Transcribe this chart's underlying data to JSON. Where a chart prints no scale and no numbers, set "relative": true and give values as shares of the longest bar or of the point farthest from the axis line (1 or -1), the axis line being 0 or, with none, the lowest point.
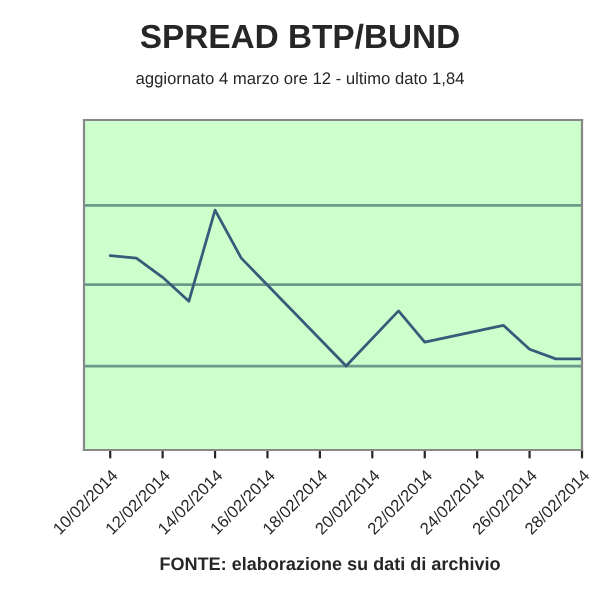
{
  "chart_data": {
    "type": "line",
    "title": "SPREAD BTP/BUND",
    "subtitle": "aggiornato 4 marzo ore 12 - ultimo dato 1,84",
    "relative": true,
    "x": [
      "2014-02-10",
      "2014-02-11",
      "2014-02-12",
      "2014-02-13",
      "2014-02-14",
      "2014-02-15",
      "2014-02-19",
      "2014-02-21",
      "2014-02-22",
      "2014-02-25",
      "2014-02-26",
      "2014-02-27",
      "2014-02-28"
    ],
    "series": [
      {
        "color": "#3a5a7a",
        "values": [
          0.81,
          0.8,
          0.72,
          0.62,
          1.0,
          0.8,
          0.35,
          0.58,
          0.45,
          0.52,
          0.42,
          0.38,
          0.38
        ]
      }
    ],
    "xlim": [
      "2014-02-09",
      "2014-02-28"
    ],
    "xticks": [
      {
        "value": "2014-02-10",
        "label": "10/02/2014"
      },
      {
        "value": "2014-02-12",
        "label": "12/02/2014"
      },
      {
        "value": "2014-02-14",
        "label": "14/02/2014"
      },
      {
        "value": "2014-02-16",
        "label": "16/02/2014"
      },
      {
        "value": "2014-02-18",
        "label": "18/02/2014"
      },
      {
        "value": "2014-02-20",
        "label": "20/02/2014"
      },
      {
        "value": "2014-02-22",
        "label": "22/02/2014"
      },
      {
        "value": "2014-02-24",
        "label": "24/02/2014"
      },
      {
        "value": "2014-02-26",
        "label": "26/02/2014"
      },
      {
        "value": "2014-02-28",
        "label": "28/02/2014"
      }
    ],
    "tick_labels": "x",
    "ref_lines": [
      {
        "axis": "y",
        "value": 1.02,
        "color": "#6a9a8a"
      },
      {
        "axis": "y",
        "value": 0.69,
        "color": "#6a9a8a"
      },
      {
        "axis": "y",
        "value": 0.35,
        "color": "#6a9a8a"
      }
    ],
    "legend": false,
    "marker": "none",
    "line_style": "solid",
    "annotations": [
      "FONTE: elaborazione su dati di archivio"
    ]
  }
}
